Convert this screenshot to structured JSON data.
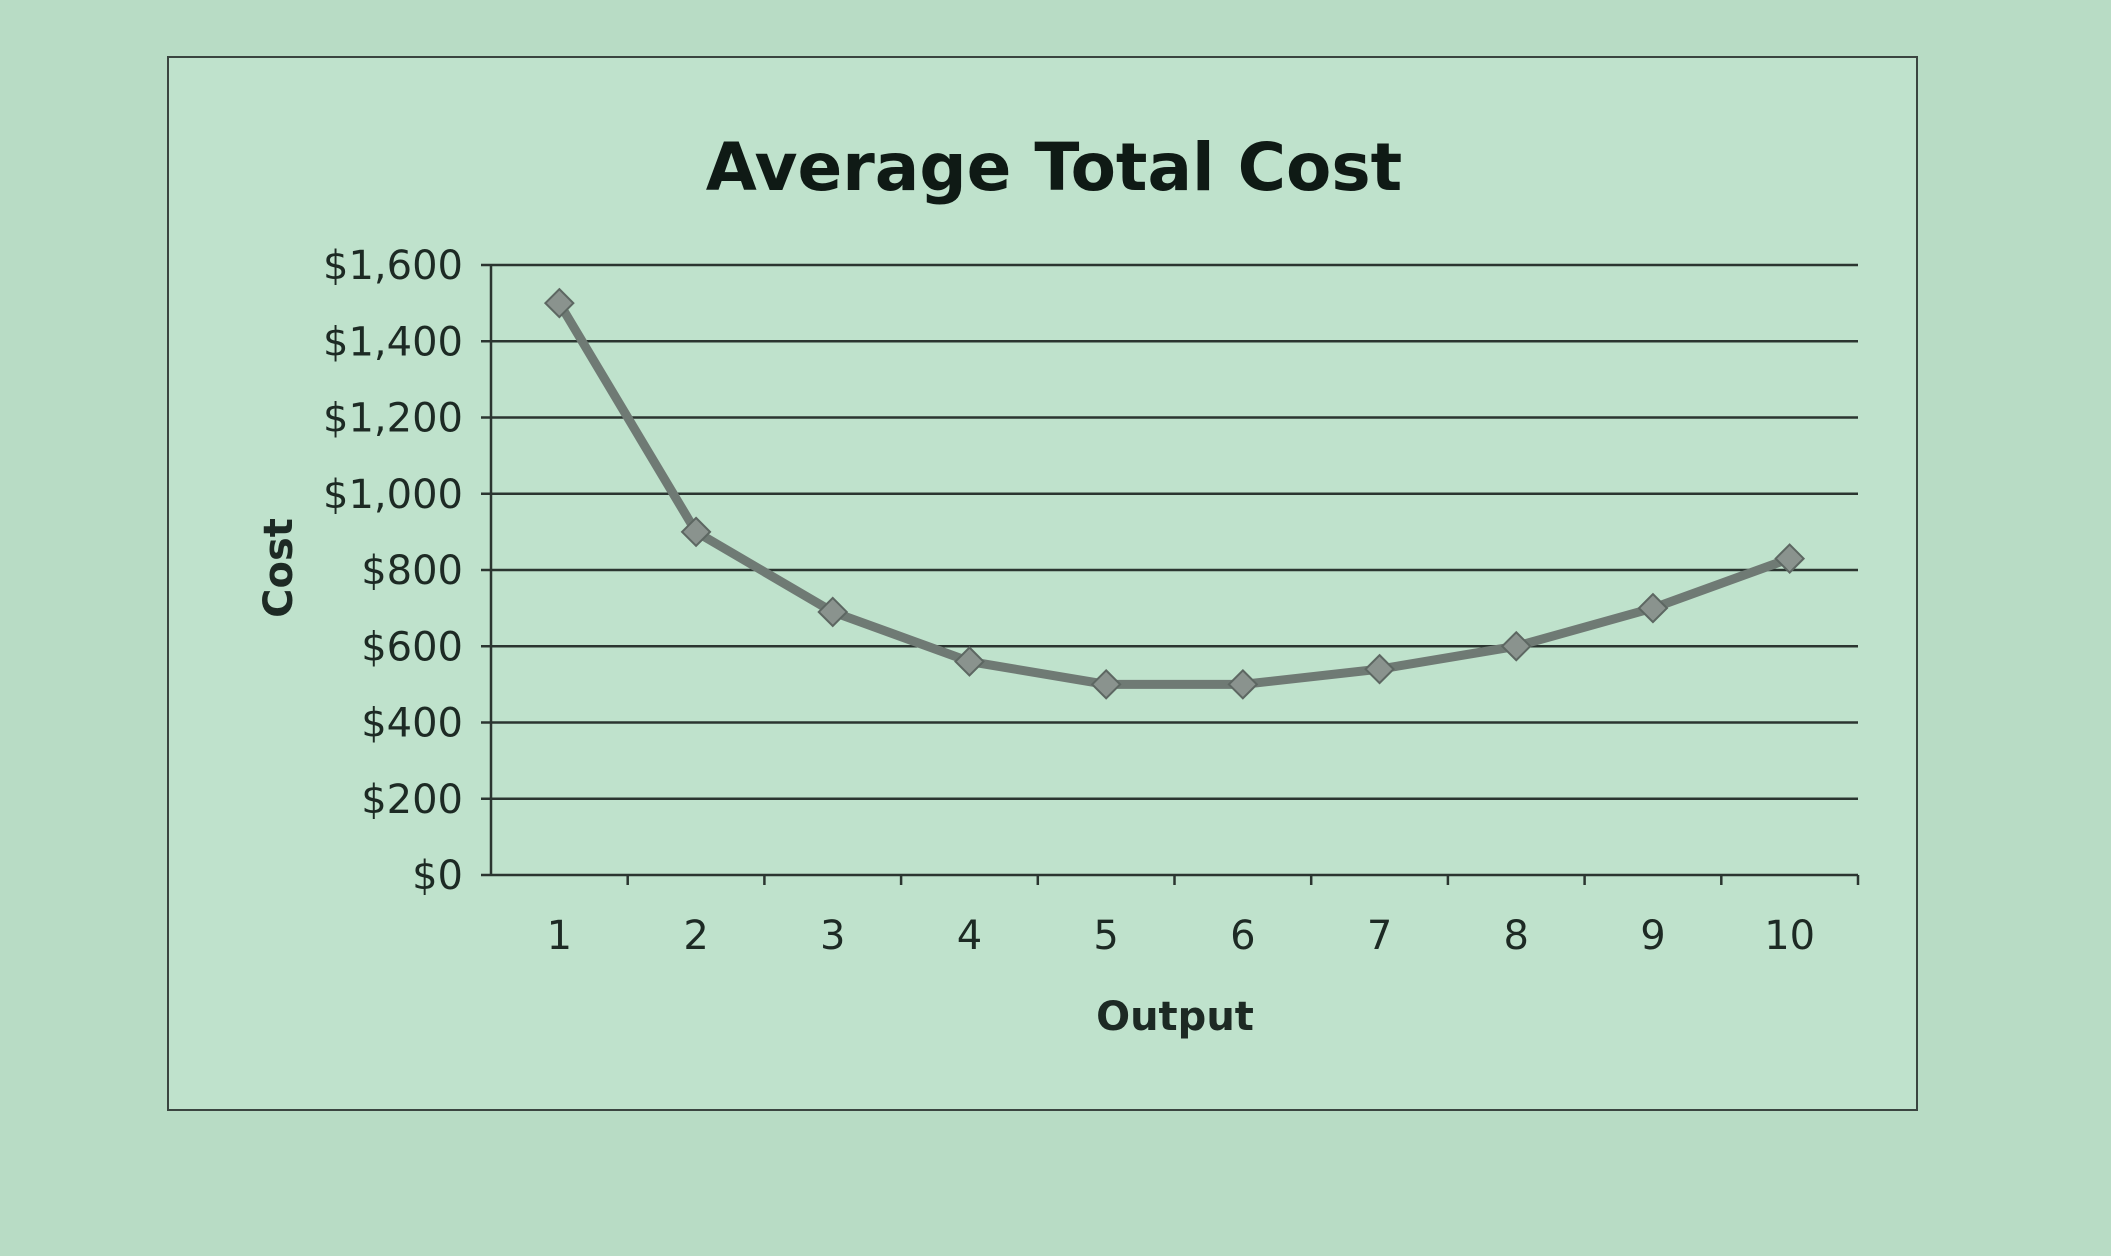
{
  "chart_data": {
    "type": "line",
    "title": "Average Total Cost",
    "xlabel": "Output",
    "ylabel": "Cost",
    "categories": [
      "1",
      "2",
      "3",
      "4",
      "5",
      "6",
      "7",
      "8",
      "9",
      "10"
    ],
    "values": [
      1500,
      900,
      690,
      560,
      500,
      500,
      540,
      600,
      700,
      830
    ],
    "ylim": [
      0,
      1600
    ],
    "yticks": [
      "$0",
      "$200",
      "$400",
      "$600",
      "$800",
      "$1,000",
      "$1,200",
      "$1,400",
      "$1,600"
    ],
    "grid": true,
    "legend": "none",
    "marker": "diamond",
    "line_color": "#6f7a74"
  }
}
